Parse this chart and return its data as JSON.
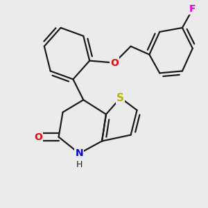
{
  "bg_color": "#ebebeb",
  "bond_color": "#1a1a1a",
  "bond_width": 1.6,
  "atom_colors": {
    "S": "#b8b800",
    "N": "#0000ff",
    "O": "#ff0000",
    "F": "#ee00ee"
  },
  "font_size": 10,
  "fig_size": [
    3.0,
    3.0
  ],
  "dpi": 100
}
